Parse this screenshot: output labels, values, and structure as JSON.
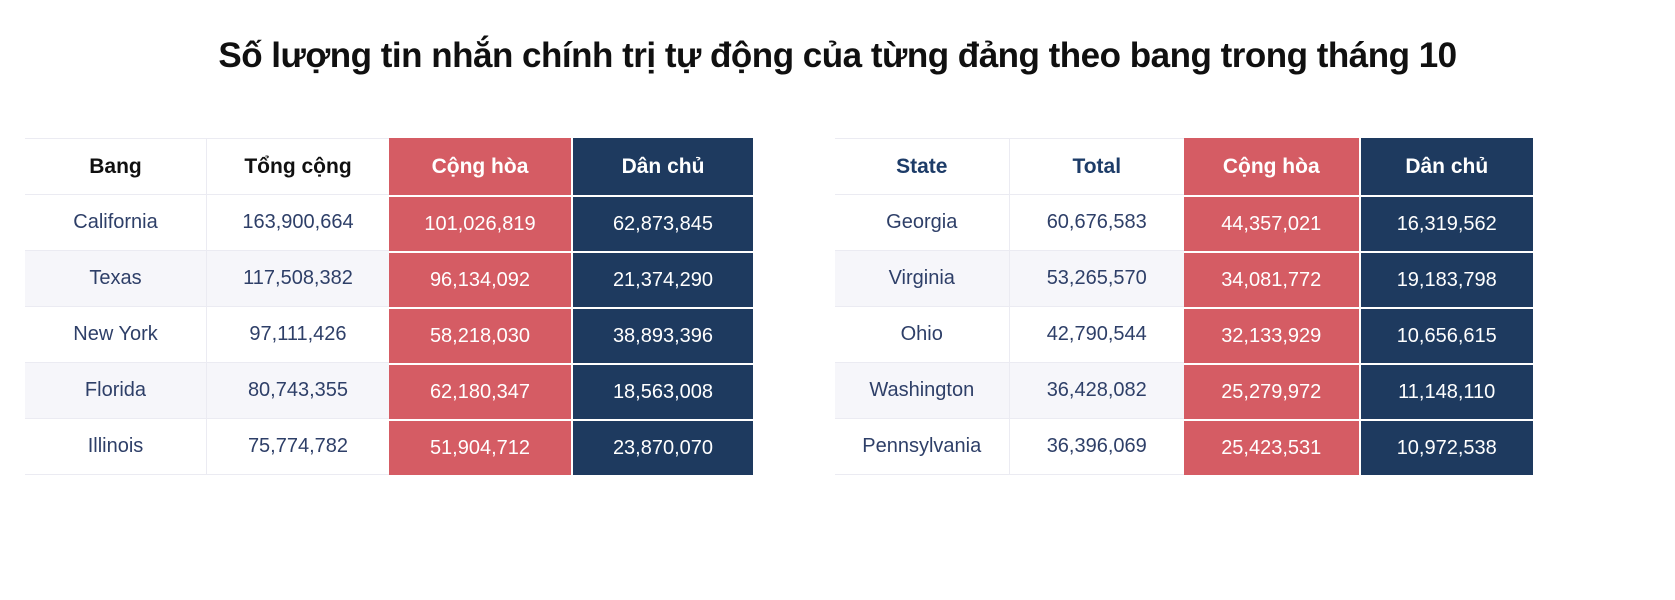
{
  "title": "Số lượng tin nhắn chính trị tự động của từng đảng theo bang trong tháng 10",
  "colors": {
    "republican": "#D55C64",
    "democrat": "#1E3A5F",
    "row_alt": "#F6F6FA",
    "grid_line": "#EBEBF2",
    "body_text": "#2E3F68"
  },
  "tables": [
    {
      "headers": [
        "Bang",
        "Tổng cộng",
        "Cộng hòa",
        "Dân chủ"
      ],
      "rows": [
        {
          "state": "California",
          "total": "163,900,664",
          "republican": "101,026,819",
          "democrat": "62,873,845"
        },
        {
          "state": "Texas",
          "total": "117,508,382",
          "republican": "96,134,092",
          "democrat": "21,374,290"
        },
        {
          "state": "New York",
          "total": "97,111,426",
          "republican": "58,218,030",
          "democrat": "38,893,396"
        },
        {
          "state": "Florida",
          "total": "80,743,355",
          "republican": "62,180,347",
          "democrat": "18,563,008"
        },
        {
          "state": "Illinois",
          "total": "75,774,782",
          "republican": "51,904,712",
          "democrat": "23,870,070"
        }
      ]
    },
    {
      "headers": [
        "State",
        "Total",
        "Cộng hòa",
        "Dân chủ"
      ],
      "rows": [
        {
          "state": "Georgia",
          "total": "60,676,583",
          "republican": "44,357,021",
          "democrat": "16,319,562"
        },
        {
          "state": "Virginia",
          "total": "53,265,570",
          "republican": "34,081,772",
          "democrat": "19,183,798"
        },
        {
          "state": "Ohio",
          "total": "42,790,544",
          "republican": "32,133,929",
          "democrat": "10,656,615"
        },
        {
          "state": "Washington",
          "total": "36,428,082",
          "republican": "25,279,972",
          "democrat": "11,148,110"
        },
        {
          "state": "Pennsylvania",
          "total": "36,396,069",
          "republican": "25,423,531",
          "democrat": "10,972,538"
        }
      ]
    }
  ],
  "chart_data": {
    "type": "table",
    "title": "Số lượng tin nhắn chính trị tự động của từng đảng theo bang trong tháng 10",
    "tables": [
      {
        "columns": [
          "Bang",
          "Tổng cộng",
          "Cộng hòa",
          "Dân chủ"
        ],
        "rows": [
          [
            "California",
            163900664,
            101026819,
            62873845
          ],
          [
            "Texas",
            117508382,
            96134092,
            21374290
          ],
          [
            "New York",
            97111426,
            58218030,
            38893396
          ],
          [
            "Florida",
            80743355,
            62180347,
            18563008
          ],
          [
            "Illinois",
            75774782,
            51904712,
            23870070
          ]
        ]
      },
      {
        "columns": [
          "State",
          "Total",
          "Cộng hòa",
          "Dân chủ"
        ],
        "rows": [
          [
            "Georgia",
            60676583,
            44357021,
            16319562
          ],
          [
            "Virginia",
            53265570,
            34081772,
            19183798
          ],
          [
            "Ohio",
            42790544,
            32133929,
            10656615
          ],
          [
            "Washington",
            36428082,
            25279972,
            11148110
          ],
          [
            "Pennsylvania",
            36396069,
            25423531,
            10972538
          ]
        ]
      }
    ],
    "legend": [
      {
        "label": "Cộng hòa",
        "color": "#D55C64"
      },
      {
        "label": "Dân chủ",
        "color": "#1E3A5F"
      }
    ]
  }
}
